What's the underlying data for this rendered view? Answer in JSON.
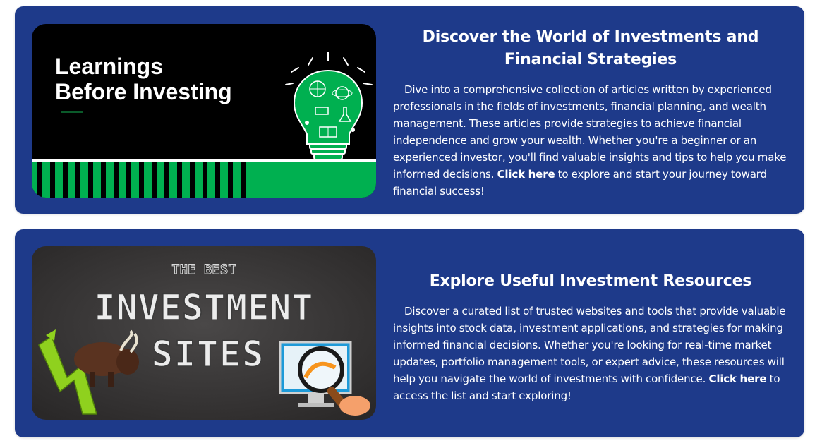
{
  "colors": {
    "card_bg": "#1e3a8a",
    "text": "#ffffff",
    "accent_green": "#00b050"
  },
  "cards": [
    {
      "image": {
        "line1": "Learnings",
        "line2": "Before Investing",
        "icon": "lightbulb-icon"
      },
      "title": "Discover the World of Investments and Financial Strategies",
      "body_before": "Dive into a comprehensive collection of articles written by experienced professionals in the fields of investments, financial planning, and wealth management. These articles provide strategies to achieve financial independence and grow your wealth. Whether you're a beginner or an experienced investor, you'll find valuable insights and tips to help you make informed decisions. ",
      "link": "Click here",
      "body_after": " to explore and start your journey toward financial success!"
    },
    {
      "image": {
        "top": "THE BEST",
        "line1": "INVESTMENT",
        "line2": "SITES",
        "icon": "bull-chart-icon"
      },
      "title": "Explore Useful Investment Resources",
      "body_before": "Discover a curated list of trusted websites and tools that provide valuable insights into stock data, investment applications, and strategies for making informed financial decisions. Whether you're looking for real-time market updates, portfolio management tools, or expert advice, these resources will help you navigate the world of investments with confidence. ",
      "link": "Click here",
      "body_after": " to access the list and start exploring!"
    }
  ]
}
